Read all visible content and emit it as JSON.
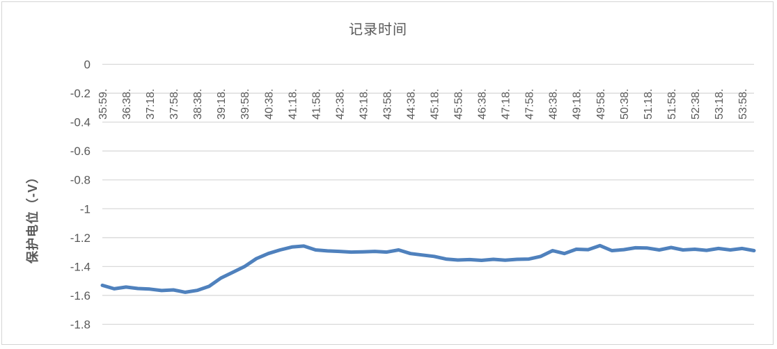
{
  "window": {
    "background": "#ffffff",
    "border_color": "#d4d4d4"
  },
  "chart_data": {
    "type": "line",
    "title": "记录时间",
    "xlabel": "",
    "ylabel": "保护电位（-V）",
    "legend": "none",
    "grid": "horizontal",
    "ylim": [
      -1.8,
      0
    ],
    "ytick_step": 0.2,
    "ytick_labels": [
      "0",
      "-0.2",
      "-0.4",
      "-0.6",
      "-0.8",
      "-1",
      "-1.2",
      "-1.4",
      "-1.6",
      "-1.8"
    ],
    "categories": [
      "35:59.",
      "36:38.",
      "37:18.",
      "37:58.",
      "38:38.",
      "39:18.",
      "39:58.",
      "40:38.",
      "41:18.",
      "41:58.",
      "42:38.",
      "43:18.",
      "43:58.",
      "44:38.",
      "45:18.",
      "45:58.",
      "46:38.",
      "47:18.",
      "47:58.",
      "48:38.",
      "49:18.",
      "49:58.",
      "50:38.",
      "51:18.",
      "51:58.",
      "52:38.",
      "53:18.",
      "53:58."
    ],
    "points_per_category": 2,
    "values": [
      -1.53,
      -1.554,
      -1.542,
      -1.552,
      -1.556,
      -1.566,
      -1.562,
      -1.578,
      -1.565,
      -1.537,
      -1.48,
      -1.44,
      -1.4,
      -1.345,
      -1.31,
      -1.285,
      -1.265,
      -1.258,
      -1.285,
      -1.292,
      -1.295,
      -1.3,
      -1.298,
      -1.295,
      -1.3,
      -1.285,
      -1.31,
      -1.32,
      -1.33,
      -1.348,
      -1.355,
      -1.352,
      -1.357,
      -1.35,
      -1.356,
      -1.35,
      -1.348,
      -1.33,
      -1.29,
      -1.31,
      -1.28,
      -1.283,
      -1.255,
      -1.29,
      -1.283,
      -1.27,
      -1.272,
      -1.285,
      -1.268,
      -1.285,
      -1.28,
      -1.288,
      -1.275,
      -1.285,
      -1.275,
      -1.29
    ],
    "line_color": "#4f81bd",
    "gridline_color": "#d9d9d9",
    "text_color": "#595959"
  }
}
